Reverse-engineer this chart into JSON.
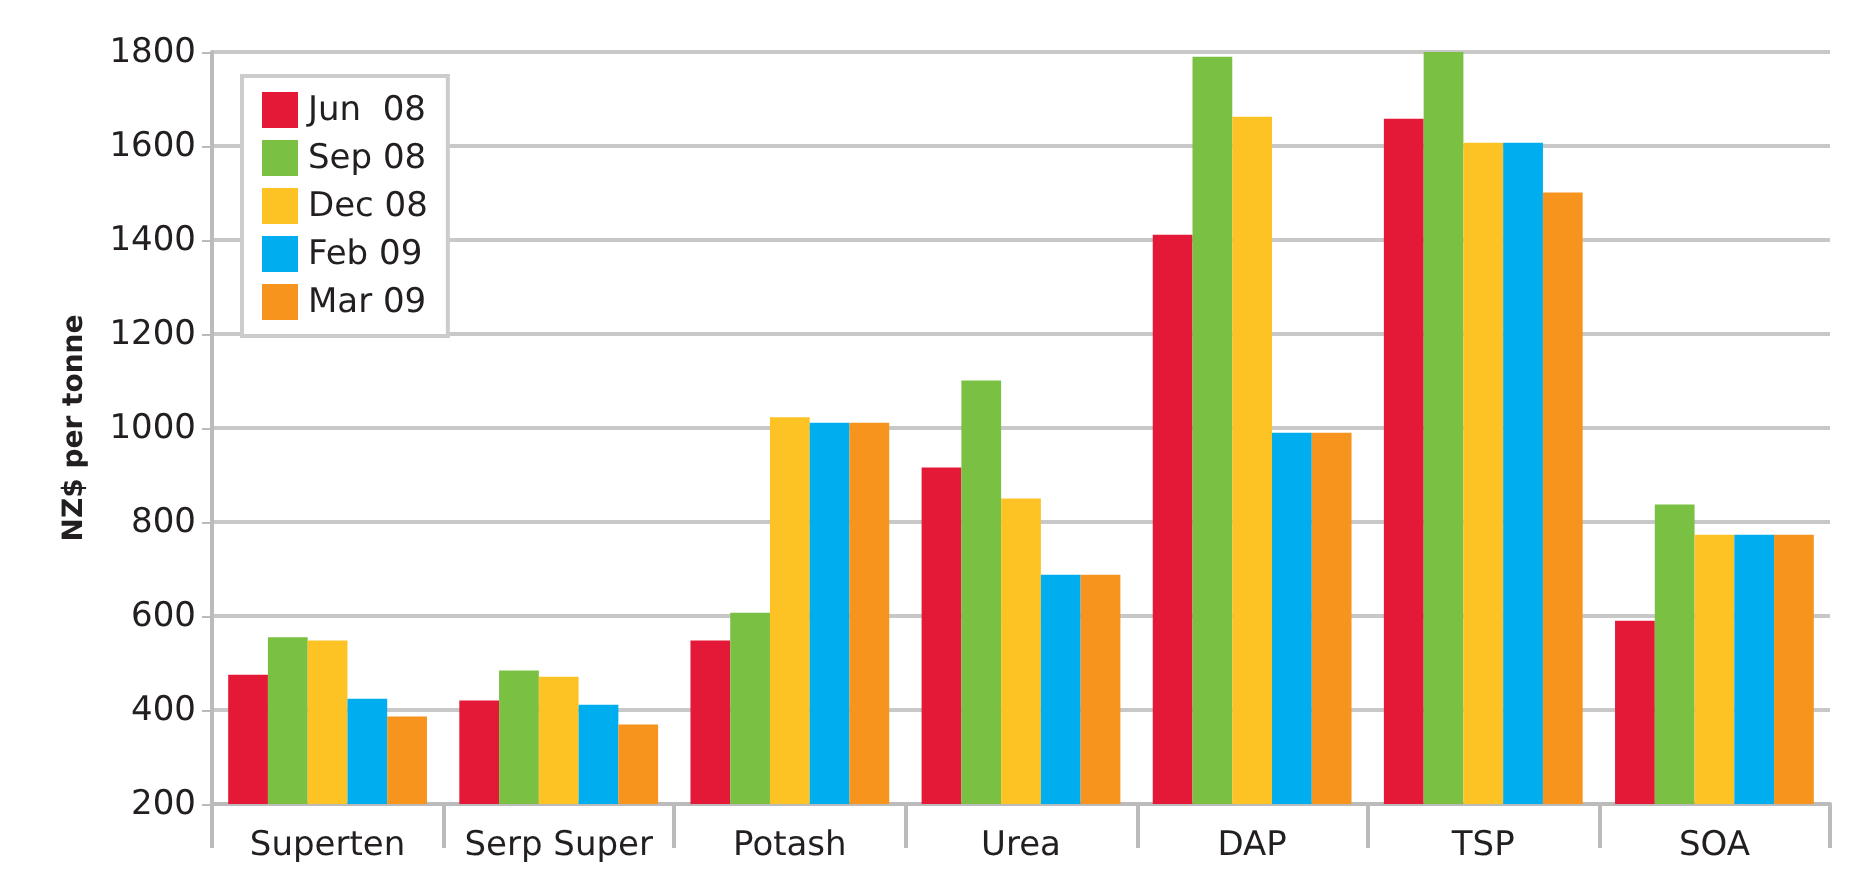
{
  "chart_data": {
    "type": "bar",
    "ylabel": "NZ$ per tonne",
    "categories": [
      "Superten",
      "Serp Super",
      "Potash",
      "Urea",
      "DAP",
      "TSP",
      "SOA"
    ],
    "series": [
      {
        "name": "Jun  08",
        "color": "#e31937",
        "values": [
          475,
          420,
          548,
          916,
          1411,
          1658,
          590
        ]
      },
      {
        "name": "Sep 08",
        "color": "#7ac143",
        "values": [
          555,
          484,
          607,
          1101,
          1790,
          1800,
          837
        ]
      },
      {
        "name": "Dec 08",
        "color": "#fdc324",
        "values": [
          548,
          471,
          1023,
          850,
          1662,
          1607,
          773
        ]
      },
      {
        "name": "Feb 09",
        "color": "#00aeef",
        "values": [
          424,
          411,
          1011,
          688,
          990,
          1607,
          773
        ]
      },
      {
        "name": "Mar 09",
        "color": "#f7941d",
        "values": [
          386,
          369,
          1011,
          688,
          990,
          1501,
          773
        ]
      }
    ],
    "ylim": [
      200,
      1800
    ],
    "yticks": [
      200,
      400,
      600,
      800,
      1000,
      1200,
      1400,
      1600,
      1800
    ],
    "grid": "y",
    "legend": "top left"
  }
}
